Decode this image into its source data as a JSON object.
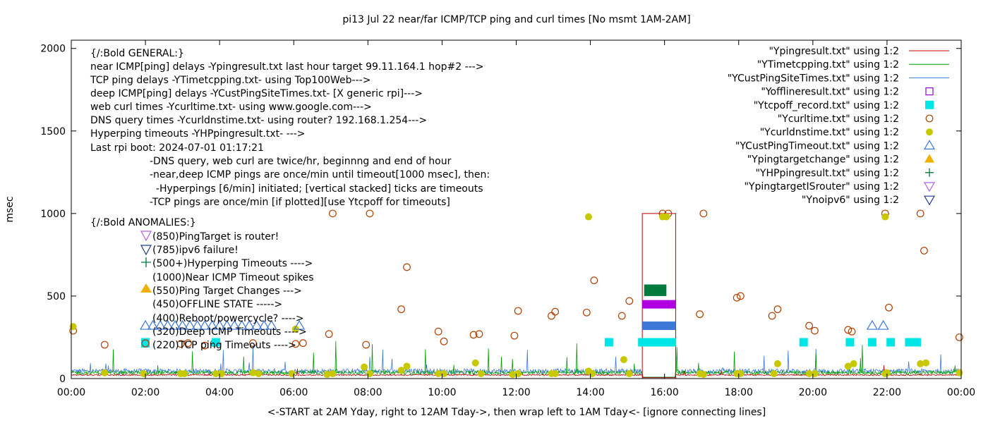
{
  "chart_data": {
    "type": "scatter",
    "title": "pi13 Jul 22  near/far ICMP/TCP ping and curl times [No msmt 1AM-2AM]",
    "xlabel": "<-START at 2AM Yday, right to 12AM Tday->, then wrap left to 1AM Tday<- [ignore connecting lines]",
    "ylabel": "msec",
    "xlim": [
      0,
      24
    ],
    "ylim": [
      0,
      2050
    ],
    "x_ticks": [
      {
        "v": 0,
        "label": "00:00"
      },
      {
        "v": 2,
        "label": "02:00"
      },
      {
        "v": 4,
        "label": "04:00"
      },
      {
        "v": 6,
        "label": "06:00"
      },
      {
        "v": 8,
        "label": "08:00"
      },
      {
        "v": 10,
        "label": "10:00"
      },
      {
        "v": 12,
        "label": "12:00"
      },
      {
        "v": 14,
        "label": "14:00"
      },
      {
        "v": 16,
        "label": "16:00"
      },
      {
        "v": 18,
        "label": "18:00"
      },
      {
        "v": 20,
        "label": "20:00"
      },
      {
        "v": 22,
        "label": "22:00"
      },
      {
        "v": 24,
        "label": "00:00"
      }
    ],
    "y_ticks": [
      {
        "v": 0,
        "label": "0"
      },
      {
        "v": 500,
        "label": "500"
      },
      {
        "v": 1000,
        "label": "1000"
      },
      {
        "v": 1500,
        "label": "1500"
      },
      {
        "v": 2000,
        "label": "2000"
      }
    ],
    "legend_position": "top-right",
    "legend": [
      {
        "label": "\"Ypingresult.txt\" using 1:2",
        "kind": "line",
        "color": "#c00000"
      },
      {
        "label": "\"YTimetcpping.txt\" using 1:2",
        "kind": "line",
        "color": "#009e00"
      },
      {
        "label": "\"YCustPingSiteTimes.txt\" using 1:2",
        "kind": "line",
        "color": "#3c78d8"
      },
      {
        "label": "\"Yofflineresult.txt\" using 1:2",
        "kind": "open-square",
        "color": "#9400d3"
      },
      {
        "label": "\"Ytcpoff_record.txt\" using 1:2",
        "kind": "filled-square",
        "color": "#00e5e5"
      },
      {
        "label": "\"Ycurltime.txt\" using 1:2",
        "kind": "open-circle",
        "color": "#b04000"
      },
      {
        "label": "\"Ycurldnstime.txt\" using 1:2",
        "kind": "filled-circle",
        "color": "#c8c800"
      },
      {
        "label": "\"YCustPingTimeout.txt\" using 1:2",
        "kind": "open-triangle",
        "color": "#3c78d8"
      },
      {
        "label": "\"Ypingtargetchange\" using 1:2",
        "kind": "filled-triangle",
        "color": "#f0b000"
      },
      {
        "label": "\"YHPpingresult.txt\" using 1:2",
        "kind": "plus",
        "color": "#007a3d"
      },
      {
        "label": "\"YpingtargetISrouter\" using 1:2",
        "kind": "open-down-triangle",
        "color": "#b060e0"
      },
      {
        "label": "\"Ynoipv6\" using 1:2",
        "kind": "open-down-triangle",
        "color": "#203a8a"
      }
    ],
    "series": [
      {
        "name": "Ycurltime.txt",
        "marker": "open-circle",
        "color": "#b04000",
        "points": [
          [
            0.05,
            290
          ],
          [
            0.9,
            205
          ],
          [
            2.95,
            210
          ],
          [
            3.15,
            215
          ],
          [
            3.6,
            200
          ],
          [
            3.85,
            215
          ],
          [
            4.9,
            215
          ],
          [
            6.05,
            210
          ],
          [
            6.25,
            215
          ],
          [
            6.95,
            270
          ],
          [
            7.05,
            1000
          ],
          [
            7.95,
            205
          ],
          [
            8.05,
            1000
          ],
          [
            8.9,
            420
          ],
          [
            9.05,
            675
          ],
          [
            9.9,
            285
          ],
          [
            10.05,
            225
          ],
          [
            10.85,
            265
          ],
          [
            11.0,
            270
          ],
          [
            11.95,
            260
          ],
          [
            12.05,
            410
          ],
          [
            12.95,
            380
          ],
          [
            13.05,
            405
          ],
          [
            13.9,
            400
          ],
          [
            14.1,
            595
          ],
          [
            14.85,
            380
          ],
          [
            15.05,
            470
          ],
          [
            15.95,
            1000
          ],
          [
            16.1,
            1000
          ],
          [
            16.95,
            390
          ],
          [
            17.05,
            1000
          ],
          [
            17.95,
            490
          ],
          [
            18.05,
            500
          ],
          [
            18.9,
            380
          ],
          [
            19.05,
            420
          ],
          [
            19.9,
            320
          ],
          [
            20.05,
            290
          ],
          [
            20.95,
            295
          ],
          [
            21.05,
            285
          ],
          [
            21.95,
            1000
          ],
          [
            22.05,
            430
          ],
          [
            22.9,
            1000
          ],
          [
            23.0,
            775
          ],
          [
            23.95,
            250
          ]
        ]
      },
      {
        "name": "Ycurldnstime.txt",
        "marker": "filled-circle",
        "color": "#c8c800",
        "points": [
          [
            0.05,
            315
          ],
          [
            2.0,
            220
          ],
          [
            6.05,
            300
          ],
          [
            13.95,
            980
          ],
          [
            15.95,
            980
          ],
          [
            16.05,
            980
          ],
          [
            21.95,
            980
          ],
          [
            22.0,
            35
          ],
          [
            0.9,
            35
          ],
          [
            1.95,
            30
          ],
          [
            2.95,
            30
          ],
          [
            3.05,
            30
          ],
          [
            3.9,
            30
          ],
          [
            4.05,
            30
          ],
          [
            4.9,
            35
          ],
          [
            5.05,
            30
          ],
          [
            5.95,
            30
          ],
          [
            6.9,
            25
          ],
          [
            7.05,
            30
          ],
          [
            7.9,
            70
          ],
          [
            8.05,
            30
          ],
          [
            8.9,
            50
          ],
          [
            9.05,
            75
          ],
          [
            9.9,
            30
          ],
          [
            10.05,
            30
          ],
          [
            10.9,
            95
          ],
          [
            11.05,
            30
          ],
          [
            11.9,
            25
          ],
          [
            12.05,
            30
          ],
          [
            12.95,
            30
          ],
          [
            13.05,
            30
          ],
          [
            13.95,
            45
          ],
          [
            14.05,
            30
          ],
          [
            14.9,
            115
          ],
          [
            15.05,
            30
          ],
          [
            16.95,
            30
          ],
          [
            17.05,
            25
          ],
          [
            17.95,
            30
          ],
          [
            18.05,
            30
          ],
          [
            18.95,
            30
          ],
          [
            19.05,
            90
          ],
          [
            19.9,
            30
          ],
          [
            20.05,
            30
          ],
          [
            20.95,
            75
          ],
          [
            21.1,
            90
          ],
          [
            21.95,
            30
          ],
          [
            22.9,
            90
          ],
          [
            23.05,
            95
          ],
          [
            23.95,
            35
          ]
        ]
      },
      {
        "name": "Ytcpoff_record.txt",
        "marker": "filled-square",
        "color": "#00e5e5",
        "points": [
          [
            2.0,
            220
          ],
          [
            3.9,
            220
          ],
          [
            14.5,
            220
          ],
          [
            15.4,
            220
          ],
          [
            15.6,
            220
          ],
          [
            15.8,
            220
          ],
          [
            16.0,
            220
          ],
          [
            16.2,
            220
          ],
          [
            19.75,
            220
          ],
          [
            21.0,
            220
          ],
          [
            21.6,
            220
          ],
          [
            22.1,
            220
          ],
          [
            22.6,
            220
          ],
          [
            22.8,
            220
          ]
        ]
      },
      {
        "name": "YCustPingTimeout.txt",
        "marker": "open-triangle",
        "color": "#3c78d8",
        "points": [
          [
            2.0,
            320
          ],
          [
            2.2,
            320
          ],
          [
            2.4,
            320
          ],
          [
            2.6,
            320
          ],
          [
            2.8,
            320
          ],
          [
            3.0,
            320
          ],
          [
            3.2,
            320
          ],
          [
            3.4,
            320
          ],
          [
            3.6,
            320
          ],
          [
            3.8,
            320
          ],
          [
            4.0,
            320
          ],
          [
            4.2,
            320
          ],
          [
            4.4,
            320
          ],
          [
            4.6,
            320
          ],
          [
            4.8,
            320
          ],
          [
            5.0,
            320
          ],
          [
            5.2,
            320
          ],
          [
            5.4,
            320
          ],
          [
            6.15,
            320
          ],
          [
            21.6,
            320
          ],
          [
            21.9,
            320
          ]
        ]
      },
      {
        "name": "YHPpingresult.txt",
        "marker": "plus",
        "color": "#007a3d",
        "points": []
      }
    ],
    "band_y": {
      "hyperping": [
        500,
        570
      ],
      "offline": [
        450,
        450
      ],
      "pingtimeout": [
        320,
        320
      ],
      "tcpoff": [
        220,
        220
      ]
    },
    "outage": {
      "start": 15.4,
      "end": 16.3,
      "value": 1000
    }
  },
  "annotations": {
    "general": [
      "{/:Bold GENERAL:}",
      "near ICMP[ping] delays -Ypingresult.txt last hour target 99.11.164.1 hop#2 --->",
      "TCP ping delays -YTimetcpping.txt- using Top100Web--->",
      "deep ICMP[ping] delays -YCustPingSiteTimes.txt- [X generic rpi]--->",
      "web curl times -Ycurltime.txt- using www.google.com--->",
      "DNS query times -Ycurldnstime.txt- using router? 192.168.1.254--->",
      "Hyperping timeouts -YHPpingresult.txt- --->",
      "Last rpi boot: 2024-07-01 01:17:21"
    ],
    "notes": [
      "-DNS query, web curl are twice/hr, beginnng and end of hour",
      "-near,deep ICMP pings are once/min until timeout[1000 msec], then:",
      "  -Hyperpings [6/min] initiated; [vertical stacked] ticks are timeouts",
      "-TCP pings are once/min [if plotted][use Ytcpoff for timeouts]"
    ],
    "anomalies_title": "{/:Bold ANOMALIES:}",
    "anomalies": [
      "(850)PingTarget is router!",
      "(785)ipv6 failure!",
      "(500+)Hyperping Timeouts ---->",
      "(1000)Near ICMP Timeout spikes",
      "(550)Ping Target Changes --->",
      "(450)OFFLINE STATE ----->",
      "(400)Reboot/powercycle? ---->",
      "(320)Deep ICMP Timeouts ---->",
      "(220)TCP ping Timeouts ---->"
    ]
  }
}
